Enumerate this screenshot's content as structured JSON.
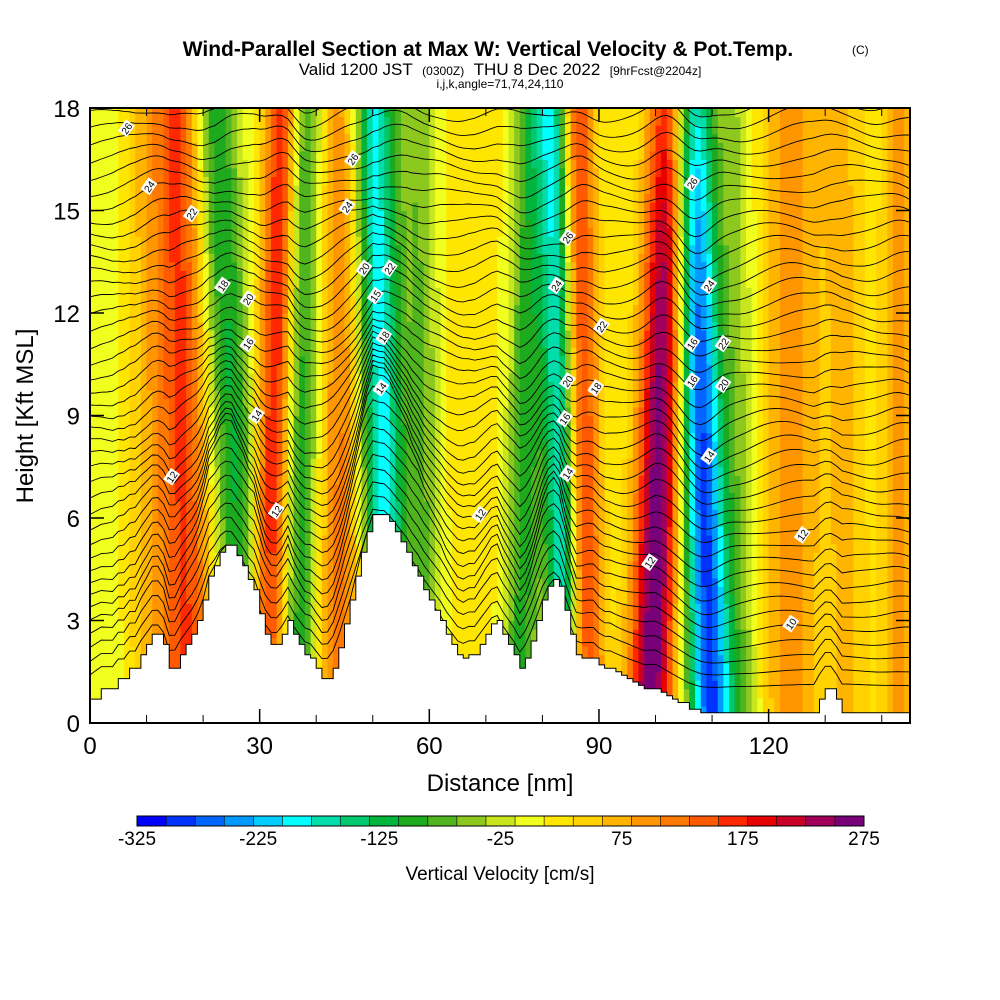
{
  "figure": {
    "title": "Wind-Parallel Section at Max W: Vertical Velocity & Pot.Temp.",
    "title_mark": "(C)",
    "subtitle_main": "Valid 1200 JST",
    "subtitle_utc": "(0300Z)",
    "subtitle_date": "THU 8 Dec 2022",
    "subtitle_fcst": "[9hrFcst@2204z]",
    "indices": "i,j,k,angle=71,74,24,110"
  },
  "chart_data": {
    "type": "heatmap",
    "xlabel": "Distance [nm]",
    "ylabel": "Height [Kft MSL]",
    "xlim": [
      0,
      145
    ],
    "ylim": [
      0,
      18
    ],
    "x_ticks": [
      0,
      30,
      60,
      90,
      120
    ],
    "x_minor_ticks": [
      10,
      20,
      40,
      50,
      70,
      80,
      100,
      110,
      130,
      140
    ],
    "y_ticks": [
      0,
      3,
      6,
      9,
      12,
      15,
      18
    ],
    "colorbar": {
      "title": "Vertical Velocity [cm/s]",
      "min": -325,
      "max": 275,
      "step": 25,
      "labels": [
        "-325",
        "-225",
        "-125",
        "-25",
        "75",
        "175",
        "275"
      ],
      "colors": [
        "#0000ff",
        "#0033ff",
        "#0066ff",
        "#0099ff",
        "#00ccff",
        "#00ffff",
        "#00ddaa",
        "#00c86e",
        "#00b43c",
        "#1eaa1e",
        "#50b41e",
        "#8cc81e",
        "#c8e61e",
        "#f0ff1e",
        "#ffe600",
        "#ffd200",
        "#ffb400",
        "#ff9600",
        "#ff7800",
        "#ff5a00",
        "#ff2800",
        "#e60000",
        "#c80028",
        "#a0005a",
        "#780078"
      ]
    },
    "velocity_field": {
      "units": "cm/s",
      "base": 25,
      "bands": [
        {
          "x0": 4,
          "x1": 3,
          "w": -20,
          "width": 4
        },
        {
          "x0": 13,
          "x1": 12,
          "w": 75,
          "width": 6
        },
        {
          "x0": 18,
          "x1": 16,
          "w": 110,
          "width": 4
        },
        {
          "x0": 28,
          "x1": 22,
          "w": -130,
          "width": 4
        },
        {
          "x0": 31,
          "x1": 34,
          "w": 180,
          "width": 3
        },
        {
          "x0": 37,
          "x1": 38,
          "w": -120,
          "width": 3
        },
        {
          "x0": 44,
          "x1": 45,
          "w": 110,
          "width": 4
        },
        {
          "x0": 53,
          "x1": 50,
          "w": -220,
          "width": 4
        },
        {
          "x0": 60,
          "x1": 58,
          "w": -70,
          "width": 3
        },
        {
          "x0": 67,
          "x1": 68,
          "w": 25,
          "width": 4
        },
        {
          "x0": 76,
          "x1": 78,
          "w": -110,
          "width": 3
        },
        {
          "x0": 84,
          "x1": 82,
          "w": -210,
          "width": 3
        },
        {
          "x0": 88,
          "x1": 86,
          "w": 170,
          "width": 3
        },
        {
          "x0": 99,
          "x1": 103,
          "w": 275,
          "width": 4
        },
        {
          "x0": 110,
          "x1": 106,
          "w": -310,
          "width": 4
        },
        {
          "x0": 116,
          "x1": 114,
          "w": -50,
          "width": 3
        },
        {
          "x0": 124,
          "x1": 124,
          "w": 90,
          "width": 5
        },
        {
          "x0": 134,
          "x1": 133,
          "w": 55,
          "width": 4
        },
        {
          "x0": 143,
          "x1": 143,
          "w": 80,
          "width": 3
        }
      ]
    },
    "terrain_kft": [
      [
        0,
        0.7
      ],
      [
        2,
        1.0
      ],
      [
        4,
        1.0
      ],
      [
        5,
        1.3
      ],
      [
        6,
        1.3
      ],
      [
        7,
        1.6
      ],
      [
        8,
        1.6
      ],
      [
        9,
        2.0
      ],
      [
        10,
        2.3
      ],
      [
        11,
        2.6
      ],
      [
        12,
        2.6
      ],
      [
        13,
        2.3
      ],
      [
        14,
        1.6
      ],
      [
        15,
        1.6
      ],
      [
        16,
        2.0
      ],
      [
        17,
        2.3
      ],
      [
        18,
        2.6
      ],
      [
        19,
        3.0
      ],
      [
        20,
        3.6
      ],
      [
        21,
        4.3
      ],
      [
        22,
        4.6
      ],
      [
        23,
        5.0
      ],
      [
        24,
        5.2
      ],
      [
        25,
        5.2
      ],
      [
        26,
        4.9
      ],
      [
        27,
        4.6
      ],
      [
        28,
        4.2
      ],
      [
        29,
        3.9
      ],
      [
        30,
        3.2
      ],
      [
        31,
        2.6
      ],
      [
        32,
        2.3
      ],
      [
        33,
        2.3
      ],
      [
        34,
        2.6
      ],
      [
        35,
        3.0
      ],
      [
        36,
        2.6
      ],
      [
        37,
        2.3
      ],
      [
        38,
        2.0
      ],
      [
        39,
        1.9
      ],
      [
        40,
        1.6
      ],
      [
        41,
        1.3
      ],
      [
        42,
        1.3
      ],
      [
        43,
        1.6
      ],
      [
        44,
        2.2
      ],
      [
        45,
        2.9
      ],
      [
        46,
        3.6
      ],
      [
        47,
        4.3
      ],
      [
        48,
        5.0
      ],
      [
        49,
        5.6
      ],
      [
        50,
        6.1
      ],
      [
        51,
        6.1
      ],
      [
        52,
        6.1
      ],
      [
        53,
        5.9
      ],
      [
        54,
        5.6
      ],
      [
        55,
        5.3
      ],
      [
        56,
        5.0
      ],
      [
        57,
        4.6
      ],
      [
        58,
        4.3
      ],
      [
        59,
        3.9
      ],
      [
        60,
        3.6
      ],
      [
        61,
        3.3
      ],
      [
        62,
        3.0
      ],
      [
        63,
        2.6
      ],
      [
        64,
        2.3
      ],
      [
        65,
        2.0
      ],
      [
        66,
        1.9
      ],
      [
        67,
        2.0
      ],
      [
        68,
        2.0
      ],
      [
        69,
        2.3
      ],
      [
        70,
        2.6
      ],
      [
        71,
        2.9
      ],
      [
        72,
        3.0
      ],
      [
        73,
        2.6
      ],
      [
        74,
        2.3
      ],
      [
        75,
        2.0
      ],
      [
        76,
        1.6
      ],
      [
        77,
        1.9
      ],
      [
        78,
        2.4
      ],
      [
        79,
        3.0
      ],
      [
        80,
        3.6
      ],
      [
        81,
        4.0
      ],
      [
        82,
        4.2
      ],
      [
        83,
        4.0
      ],
      [
        84,
        3.3
      ],
      [
        85,
        2.6
      ],
      [
        86,
        2.0
      ],
      [
        87,
        1.9
      ],
      [
        88,
        1.9
      ],
      [
        89,
        1.9
      ],
      [
        90,
        1.7
      ],
      [
        91,
        1.6
      ],
      [
        92,
        1.6
      ],
      [
        93,
        1.5
      ],
      [
        94,
        1.4
      ],
      [
        95,
        1.3
      ],
      [
        96,
        1.2
      ],
      [
        97,
        1.1
      ],
      [
        98,
        1.0
      ],
      [
        99,
        1.0
      ],
      [
        100,
        1.0
      ],
      [
        101,
        0.9
      ],
      [
        102,
        0.8
      ],
      [
        103,
        0.7
      ],
      [
        104,
        0.6
      ],
      [
        106,
        0.4
      ],
      [
        108,
        0.3
      ],
      [
        110,
        0.3
      ],
      [
        112,
        0.3
      ],
      [
        115,
        0.3
      ],
      [
        118,
        0.3
      ],
      [
        122,
        0.3
      ],
      [
        126,
        0.3
      ],
      [
        128,
        0.3
      ],
      [
        129,
        0.7
      ],
      [
        130,
        1.0
      ],
      [
        131,
        1.0
      ],
      [
        132,
        0.7
      ],
      [
        133,
        0.3
      ],
      [
        134,
        0.3
      ],
      [
        136,
        0.3
      ],
      [
        138,
        0.3
      ],
      [
        140,
        0.3
      ],
      [
        142,
        0.3
      ],
      [
        145,
        0.3
      ]
    ],
    "contour_labels": [
      {
        "text": "26",
        "x": 6.5,
        "y": 17.4
      },
      {
        "text": "24",
        "x": 10.5,
        "y": 15.7
      },
      {
        "text": "22",
        "x": 18,
        "y": 14.9
      },
      {
        "text": "26",
        "x": 46.5,
        "y": 16.5
      },
      {
        "text": "24",
        "x": 45.5,
        "y": 15.1
      },
      {
        "text": "18",
        "x": 23.5,
        "y": 12.8
      },
      {
        "text": "20",
        "x": 28,
        "y": 12.4
      },
      {
        "text": "16",
        "x": 28,
        "y": 11.1
      },
      {
        "text": "20",
        "x": 48.5,
        "y": 13.3
      },
      {
        "text": "22",
        "x": 53,
        "y": 13.3
      },
      {
        "text": "15",
        "x": 50.5,
        "y": 12.5
      },
      {
        "text": "18",
        "x": 52,
        "y": 11.3
      },
      {
        "text": "14",
        "x": 29.5,
        "y": 9.0
      },
      {
        "text": "14",
        "x": 51.5,
        "y": 9.8
      },
      {
        "text": "12",
        "x": 14.5,
        "y": 7.2
      },
      {
        "text": "12",
        "x": 33,
        "y": 6.2
      },
      {
        "text": "12",
        "x": 69,
        "y": 6.1
      },
      {
        "text": "26",
        "x": 84.5,
        "y": 14.2
      },
      {
        "text": "24",
        "x": 82.5,
        "y": 12.8
      },
      {
        "text": "22",
        "x": 90.5,
        "y": 11.6
      },
      {
        "text": "20",
        "x": 84.5,
        "y": 10.0
      },
      {
        "text": "18",
        "x": 89.5,
        "y": 9.8
      },
      {
        "text": "16",
        "x": 84,
        "y": 8.9
      },
      {
        "text": "14",
        "x": 84.5,
        "y": 7.3
      },
      {
        "text": "12",
        "x": 99,
        "y": 4.7
      },
      {
        "text": "26",
        "x": 106.5,
        "y": 15.8
      },
      {
        "text": "24",
        "x": 109.5,
        "y": 12.8
      },
      {
        "text": "16",
        "x": 106.5,
        "y": 11.1
      },
      {
        "text": "22",
        "x": 112,
        "y": 11.1
      },
      {
        "text": "16",
        "x": 106.5,
        "y": 10.0
      },
      {
        "text": "20",
        "x": 112,
        "y": 9.9
      },
      {
        "text": "14",
        "x": 109.5,
        "y": 7.8
      },
      {
        "text": "12",
        "x": 126,
        "y": 5.5
      },
      {
        "text": "10",
        "x": 124,
        "y": 2.9
      }
    ]
  }
}
